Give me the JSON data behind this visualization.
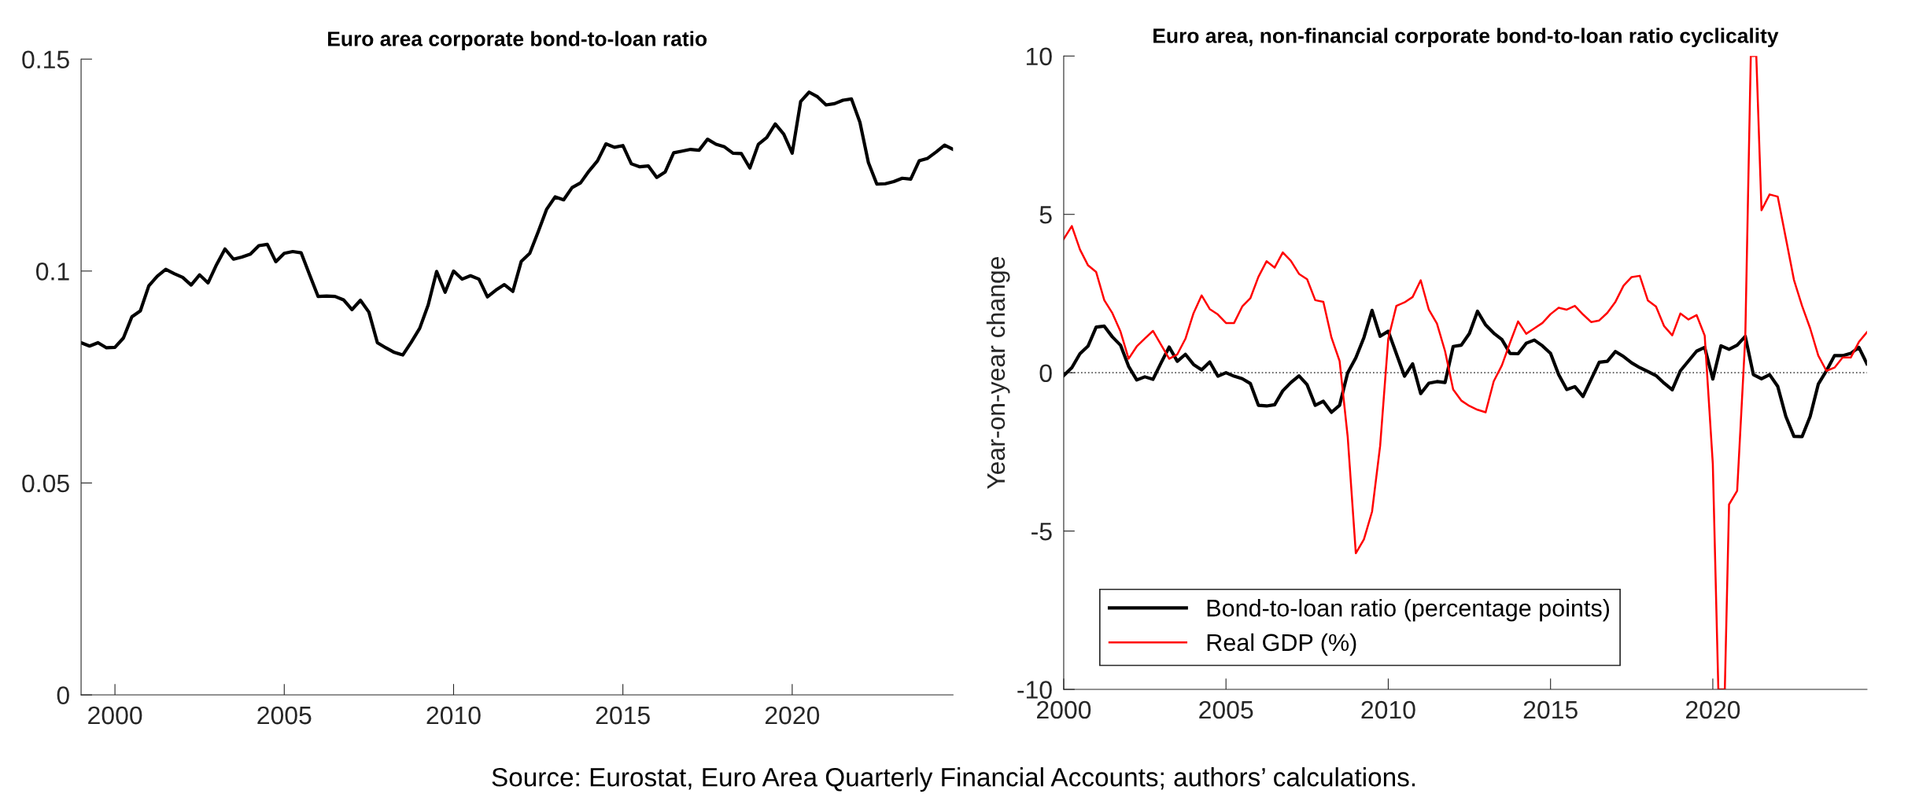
{
  "chart_data": [
    {
      "type": "line",
      "title": "Euro area corporate bond-to-loan ratio",
      "x": [
        1999,
        1999.25,
        1999.5,
        1999.75,
        2000,
        2000.25,
        2000.5,
        2000.75,
        2001,
        2001.25,
        2001.5,
        2001.75,
        2002,
        2002.25,
        2002.5,
        2002.75,
        2003,
        2003.25,
        2003.5,
        2003.75,
        2004,
        2004.25,
        2004.5,
        2004.75,
        2005,
        2005.25,
        2005.5,
        2005.75,
        2006,
        2006.25,
        2006.5,
        2006.75,
        2007,
        2007.25,
        2007.5,
        2007.75,
        2008,
        2008.25,
        2008.5,
        2008.75,
        2009,
        2009.25,
        2009.5,
        2009.75,
        2010,
        2010.25,
        2010.5,
        2010.75,
        2011,
        2011.25,
        2011.5,
        2011.75,
        2012,
        2012.25,
        2012.5,
        2012.75,
        2013,
        2013.25,
        2013.5,
        2013.75,
        2014,
        2014.25,
        2014.5,
        2014.75,
        2015,
        2015.25,
        2015.5,
        2015.75,
        2016,
        2016.25,
        2016.5,
        2016.75,
        2017,
        2017.25,
        2017.5,
        2017.75,
        2018,
        2018.25,
        2018.5,
        2018.75,
        2019,
        2019.25,
        2019.5,
        2019.75,
        2020,
        2020.25,
        2020.5,
        2020.75,
        2021,
        2021.25,
        2021.5,
        2021.75,
        2022,
        2022.25,
        2022.5,
        2022.75,
        2023,
        2023.25,
        2023.5,
        2023.75,
        2024,
        2024.25,
        2024.5,
        2024.75
      ],
      "series": [
        {
          "color": "#000000",
          "values": [
            0.0831,
            0.0823,
            0.0831,
            0.0819,
            0.082,
            0.0842,
            0.0892,
            0.0906,
            0.0965,
            0.0988,
            0.1004,
            0.0994,
            0.0985,
            0.0967,
            0.0991,
            0.0972,
            0.1015,
            0.1052,
            0.1028,
            0.1033,
            0.104,
            0.106,
            0.1063,
            0.1022,
            0.1042,
            0.1046,
            0.1043,
            0.0991,
            0.094,
            0.0941,
            0.094,
            0.0932,
            0.0909,
            0.0931,
            0.0903,
            0.0831,
            0.0819,
            0.0808,
            0.0802,
            0.0832,
            0.0865,
            0.092,
            0.0999,
            0.095,
            0.1,
            0.0981,
            0.0989,
            0.0981,
            0.0939,
            0.0955,
            0.0968,
            0.0952,
            0.1023,
            0.1042,
            0.1093,
            0.1146,
            0.1175,
            0.1168,
            0.1197,
            0.1208,
            0.1236,
            0.126,
            0.13,
            0.1292,
            0.1296,
            0.1253,
            0.1246,
            0.1248,
            0.1221,
            0.1234,
            0.1279,
            0.1283,
            0.1287,
            0.1285,
            0.1311,
            0.1299,
            0.1293,
            0.1278,
            0.1277,
            0.1243,
            0.1299,
            0.1315,
            0.1347,
            0.1323,
            0.1278,
            0.14,
            0.1422,
            0.1411,
            0.1392,
            0.1395,
            0.1403,
            0.1406,
            0.1351,
            0.1256,
            0.1205,
            0.1206,
            0.1211,
            0.1219,
            0.1217,
            0.126,
            0.1266,
            0.1281,
            0.1297,
            0.1287
          ]
        }
      ],
      "xlim": [
        1999,
        2024.75
      ],
      "xticks": [
        2000,
        2005,
        2010,
        2015,
        2020
      ],
      "ylim": [
        0,
        0.15
      ],
      "yticks": [
        0,
        0.05,
        0.1,
        0.15
      ],
      "annotations": [
        "Source: Eurostat, Euro Area Quarterly Financial Accounts; authors’ calculations."
      ]
    },
    {
      "type": "line",
      "title": "Euro area, non-financial corporate bond-to-loan ratio cyclicality",
      "ylabel": "Year-on-year change",
      "x": [
        2000,
        2000.25,
        2000.5,
        2000.75,
        2001,
        2001.25,
        2001.5,
        2001.75,
        2002,
        2002.25,
        2002.5,
        2002.75,
        2003,
        2003.25,
        2003.5,
        2003.75,
        2004,
        2004.25,
        2004.5,
        2004.75,
        2005,
        2005.25,
        2005.5,
        2005.75,
        2006,
        2006.25,
        2006.5,
        2006.75,
        2007,
        2007.25,
        2007.5,
        2007.75,
        2008,
        2008.25,
        2008.5,
        2008.75,
        2009,
        2009.25,
        2009.5,
        2009.75,
        2010,
        2010.25,
        2010.5,
        2010.75,
        2011,
        2011.25,
        2011.5,
        2011.75,
        2012,
        2012.25,
        2012.5,
        2012.75,
        2013,
        2013.25,
        2013.5,
        2013.75,
        2014,
        2014.25,
        2014.5,
        2014.75,
        2015,
        2015.25,
        2015.5,
        2015.75,
        2016,
        2016.25,
        2016.5,
        2016.75,
        2017,
        2017.25,
        2017.5,
        2017.75,
        2018,
        2018.25,
        2018.5,
        2018.75,
        2019,
        2019.25,
        2019.5,
        2019.75,
        2020,
        2020.25,
        2020.5,
        2020.75,
        2021,
        2021.25,
        2021.5,
        2021.75,
        2022,
        2022.25,
        2022.5,
        2022.75,
        2023,
        2023.25,
        2023.5,
        2023.75,
        2024,
        2024.25,
        2024.5,
        2024.75
      ],
      "series": [
        {
          "name": "Bond-to-loan ratio (percentage points)",
          "color": "#000000",
          "values": [
            -0.09,
            0.16,
            0.6,
            0.84,
            1.44,
            1.47,
            1.13,
            0.87,
            0.2,
            -0.23,
            -0.13,
            -0.21,
            0.31,
            0.81,
            0.36,
            0.58,
            0.26,
            0.09,
            0.34,
            -0.11,
            0.0,
            -0.11,
            -0.19,
            -0.34,
            -1.03,
            -1.05,
            -1.01,
            -0.57,
            -0.31,
            -0.1,
            -0.38,
            -1.03,
            -0.9,
            -1.25,
            -1.03,
            0.0,
            0.47,
            1.11,
            1.97,
            1.15,
            1.31,
            0.6,
            -0.11,
            0.28,
            -0.66,
            -0.33,
            -0.28,
            -0.31,
            0.83,
            0.87,
            1.24,
            1.94,
            1.51,
            1.25,
            1.05,
            0.61,
            0.6,
            0.93,
            1.03,
            0.85,
            0.61,
            -0.06,
            -0.53,
            -0.44,
            -0.75,
            -0.21,
            0.33,
            0.36,
            0.67,
            0.51,
            0.31,
            0.16,
            0.04,
            -0.09,
            -0.33,
            -0.54,
            0.06,
            0.37,
            0.68,
            0.8,
            -0.2,
            0.85,
            0.74,
            0.87,
            1.15,
            -0.06,
            -0.19,
            -0.06,
            -0.43,
            -1.38,
            -2.01,
            -2.02,
            -1.38,
            -0.36,
            0.06,
            0.54,
            0.54,
            0.61,
            0.8,
            0.28
          ]
        },
        {
          "name": "Real GDP (%)",
          "color": "#ff0000",
          "x": [
            2000,
            2000.25,
            2000.5,
            2000.75,
            2001,
            2001.25,
            2001.5,
            2001.75,
            2002,
            2002.25,
            2002.5,
            2002.75,
            2003,
            2003.25,
            2003.5,
            2003.75,
            2004,
            2004.25,
            2004.5,
            2004.75,
            2005,
            2005.25,
            2005.5,
            2005.75,
            2006,
            2006.25,
            2006.5,
            2006.75,
            2007,
            2007.25,
            2007.5,
            2007.75,
            2008,
            2008.25,
            2008.5,
            2008.75,
            2009,
            2009.25,
            2009.5,
            2009.75,
            2010,
            2010.25,
            2010.5,
            2010.75,
            2011,
            2011.25,
            2011.5,
            2011.75,
            2012,
            2012.25,
            2012.5,
            2012.75,
            2013,
            2013.25,
            2013.5,
            2013.75,
            2014,
            2014.25,
            2014.5,
            2014.75,
            2015,
            2015.25,
            2015.5,
            2015.75,
            2016,
            2016.25,
            2016.5,
            2016.75,
            2017,
            2017.25,
            2017.5,
            2017.75,
            2018,
            2018.25,
            2018.5,
            2018.75,
            2019,
            2019.25,
            2019.5,
            2019.75,
            2020,
            2020.17,
            2020.37,
            2020.5,
            2020.75,
            2021,
            2021.17,
            2021.34,
            2021.5,
            2021.75,
            2022,
            2022.25,
            2022.5,
            2022.75,
            2023,
            2023.25,
            2023.5,
            2023.75,
            2024,
            2024.25,
            2024.5,
            2024.75
          ],
          "values": [
            4.22,
            4.63,
            3.89,
            3.39,
            3.18,
            2.29,
            1.88,
            1.3,
            0.44,
            0.83,
            1.08,
            1.32,
            0.88,
            0.44,
            0.58,
            1.07,
            1.88,
            2.44,
            2.01,
            1.84,
            1.57,
            1.57,
            2.09,
            2.35,
            3.03,
            3.52,
            3.32,
            3.8,
            3.53,
            3.12,
            2.95,
            2.29,
            2.24,
            1.11,
            0.37,
            -2.02,
            -5.7,
            -5.26,
            -4.39,
            -2.31,
            1.07,
            2.11,
            2.22,
            2.39,
            2.92,
            1.99,
            1.55,
            0.68,
            -0.53,
            -0.88,
            -1.05,
            -1.17,
            -1.25,
            -0.27,
            0.23,
            0.94,
            1.62,
            1.23,
            1.4,
            1.57,
            1.85,
            2.05,
            1.99,
            2.11,
            1.84,
            1.6,
            1.65,
            1.89,
            2.24,
            2.75,
            3.02,
            3.06,
            2.28,
            2.09,
            1.47,
            1.18,
            1.87,
            1.68,
            1.82,
            1.17,
            -2.88,
            -10,
            -10,
            -4.16,
            -3.73,
            1.11,
            10,
            10,
            5.13,
            5.63,
            5.56,
            4.25,
            2.93,
            2.11,
            1.4,
            0.54,
            0.06,
            0.16,
            0.48,
            0.48,
            0.97,
            1.28
          ]
        }
      ],
      "xlim": [
        2000,
        2024.75
      ],
      "xticks": [
        2000,
        2005,
        2010,
        2015,
        2020
      ],
      "ylim": [
        -10,
        10
      ],
      "yticks": [
        -10,
        -5,
        0,
        5,
        10
      ],
      "ref_lines": [
        {
          "axis": "y",
          "value": 0,
          "color": "#555555",
          "line_style": "dotted"
        }
      ],
      "legend": "bottom left"
    }
  ]
}
